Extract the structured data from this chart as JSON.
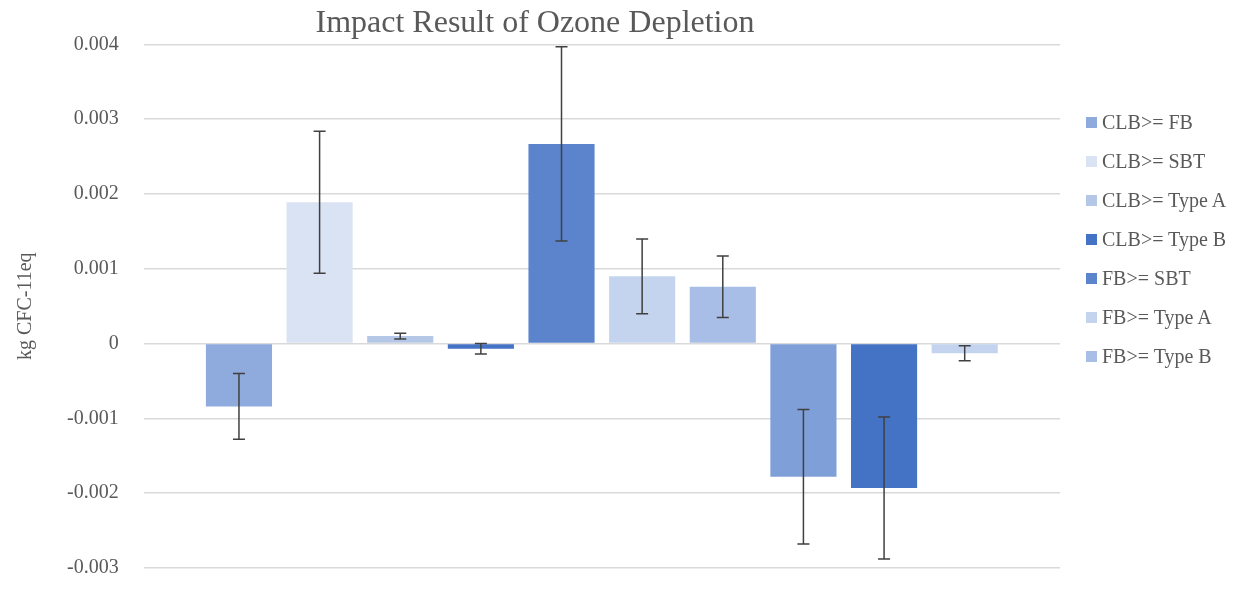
{
  "chart_data": {
    "type": "bar",
    "title": "Impact Result of Ozone Depletion",
    "ylabel": "kg CFC-11eq",
    "categories": [
      null
    ],
    "ylim": [
      -0.003,
      0.004
    ],
    "yticks": [
      -0.003,
      -0.002,
      -0.001,
      0,
      0.001,
      0.002,
      0.003,
      0.004
    ],
    "grid": "y",
    "legend": "right",
    "tick_labels": "y",
    "series": [
      {
        "name": "CLB>= FB",
        "color": "#8faadc",
        "values": [
          -0.00084
        ],
        "errors": [
          0.00044
        ]
      },
      {
        "name": "CLB>= SBT",
        "color": "#dae3f3",
        "values": [
          0.00189
        ],
        "errors": [
          0.00095
        ]
      },
      {
        "name": "CLB>= Type A",
        "color": "#b4c7e7",
        "values": [
          0.0001
        ],
        "errors": [
          4e-05
        ]
      },
      {
        "name": "CLB>= Type B",
        "color": "#4472c4",
        "values": [
          -7e-05
        ],
        "errors": [
          7e-05
        ]
      },
      {
        "name": "FB>= SBT",
        "color": "#5b84cc",
        "values": [
          0.00267
        ],
        "errors": [
          0.0013
        ]
      },
      {
        "name": "FB>= Type A",
        "color": "#c5d4ee",
        "values": [
          0.0009
        ],
        "errors": [
          0.0005
        ]
      },
      {
        "name": "FB>= Type B",
        "color": "#a9bee6",
        "values": [
          0.00076
        ],
        "errors": [
          0.00041
        ]
      },
      {
        "color": "#7f9fd8",
        "values": [
          -0.00178
        ],
        "errors": [
          0.0009
        ]
      },
      {
        "color": "#4472c4",
        "values": [
          -0.00193
        ],
        "errors": [
          0.00095
        ]
      },
      {
        "color": "#c5d4ee",
        "values": [
          -0.00013
        ],
        "errors": [
          0.0001
        ]
      }
    ]
  }
}
